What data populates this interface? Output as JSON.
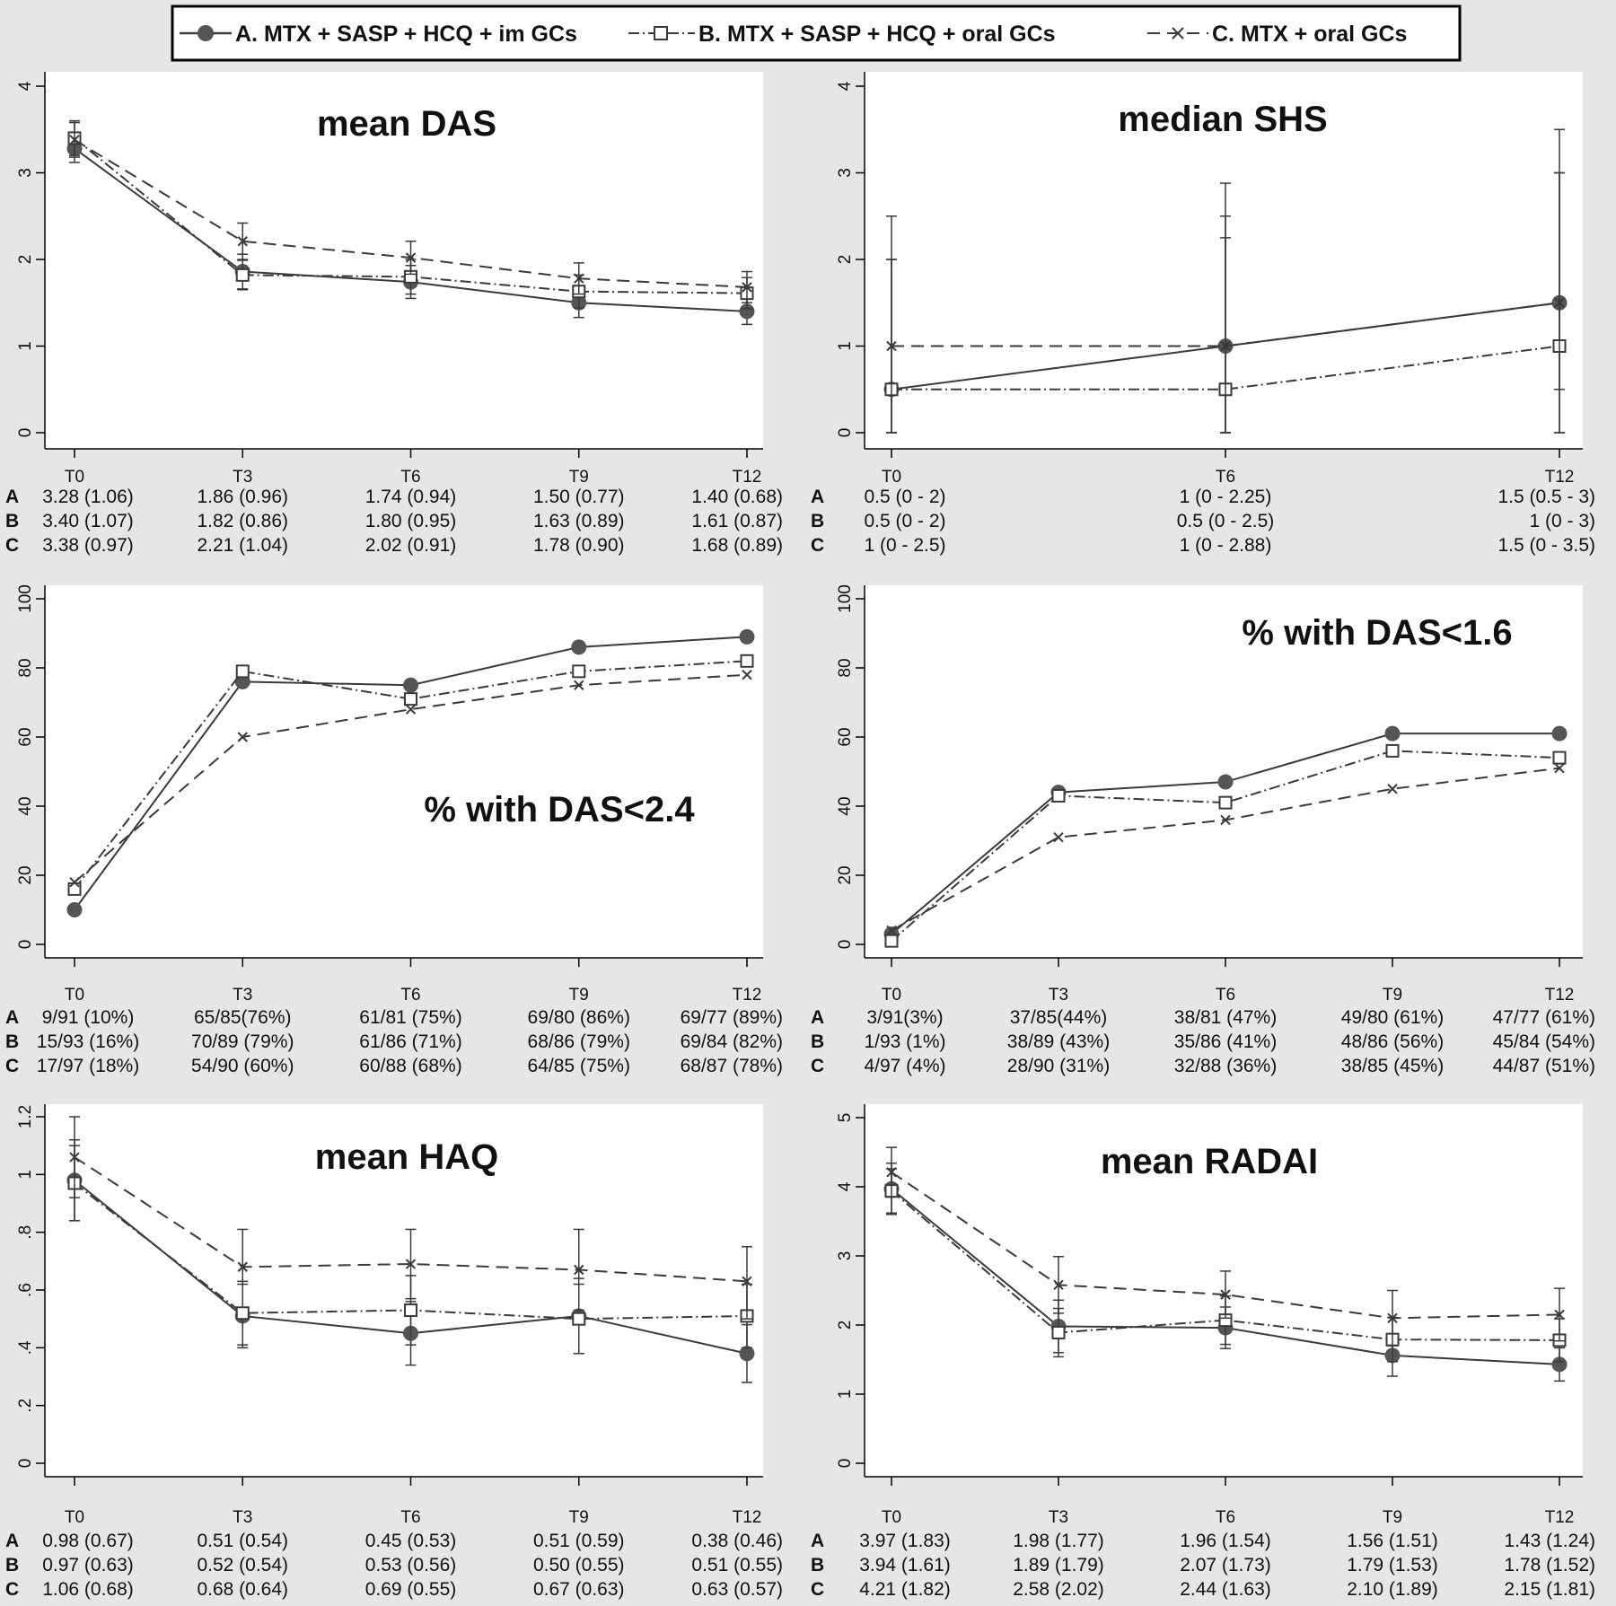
{
  "legend": [
    {
      "key": "A",
      "label": "A. MTX + SASP + HCQ + im GCs",
      "style": "solid",
      "marker": "circle"
    },
    {
      "key": "B",
      "label": "B. MTX + SASP + HCQ + oral GCs",
      "style": "dashdot",
      "marker": "square"
    },
    {
      "key": "C",
      "label": "C. MTX + oral GCs",
      "style": "dashed",
      "marker": "x"
    }
  ],
  "row_labels": [
    "A",
    "B",
    "C"
  ],
  "chart_data": [
    {
      "type": "line",
      "title": "mean DAS",
      "x": [
        "T0",
        "T3",
        "T6",
        "T9",
        "T12"
      ],
      "ylim": [
        0,
        4
      ],
      "yticks": [
        "0",
        "1",
        "2",
        "3",
        "4"
      ],
      "series": [
        {
          "name": "A",
          "values": [
            3.28,
            1.86,
            1.74,
            1.5,
            1.4
          ],
          "err_low": [
            3.12,
            1.66,
            1.55,
            1.33,
            1.25
          ],
          "err_high": [
            3.44,
            2.06,
            1.93,
            1.67,
            1.55
          ]
        },
        {
          "name": "B",
          "values": [
            3.4,
            1.82,
            1.8,
            1.63,
            1.61
          ],
          "err_low": [
            3.2,
            1.65,
            1.6,
            1.44,
            1.43
          ],
          "err_high": [
            3.6,
            1.99,
            2.0,
            1.82,
            1.79
          ]
        },
        {
          "name": "C",
          "values": [
            3.38,
            2.21,
            2.02,
            1.78,
            1.68
          ],
          "err_low": [
            3.18,
            2.0,
            1.83,
            1.6,
            1.5
          ],
          "err_high": [
            3.58,
            2.42,
            2.21,
            1.96,
            1.86
          ]
        }
      ],
      "table": [
        [
          "3.28 (1.06)",
          "1.86 (0.96)",
          "1.74 (0.94)",
          "1.50 (0.77)",
          "1.40 (0.68)"
        ],
        [
          "3.40 (1.07)",
          "1.82 (0.86)",
          "1.80 (0.95)",
          "1.63 (0.89)",
          "1.61 (0.87)"
        ],
        [
          "3.38 (0.97)",
          "2.21 (1.04)",
          "2.02 (0.91)",
          "1.78 (0.90)",
          "1.68 (0.89)"
        ]
      ]
    },
    {
      "type": "line",
      "title": "median SHS",
      "x": [
        "T0",
        "T6",
        "T12"
      ],
      "ylim": [
        0,
        4
      ],
      "yticks": [
        "0",
        "1",
        "2",
        "3",
        "4"
      ],
      "series": [
        {
          "name": "A",
          "values": [
            0.5,
            1,
            1.5
          ],
          "err_low": [
            0,
            0,
            0.5
          ],
          "err_high": [
            2,
            2.25,
            3
          ]
        },
        {
          "name": "B",
          "values": [
            0.5,
            0.5,
            1
          ],
          "err_low": [
            0,
            0,
            0
          ],
          "err_high": [
            2,
            2.5,
            3
          ]
        },
        {
          "name": "C",
          "values": [
            1,
            1,
            1.5
          ],
          "err_low": [
            0,
            0,
            0
          ],
          "err_high": [
            2.5,
            2.88,
            3.5
          ]
        }
      ],
      "table": [
        [
          "0.5 (0 - 2)",
          "1 (0 - 2.25)",
          "1.5 (0.5 - 3)"
        ],
        [
          "0.5 (0 - 2)",
          "0.5 (0 - 2.5)",
          "1 (0 - 3)"
        ],
        [
          "1 (0 - 2.5)",
          "1 (0 - 2.88)",
          "1.5 (0 - 3.5)"
        ]
      ]
    },
    {
      "type": "line",
      "title": "% with DAS<2.4",
      "x": [
        "T0",
        "T3",
        "T6",
        "T9",
        "T12"
      ],
      "ylim": [
        0,
        100
      ],
      "yticks": [
        "0",
        "20",
        "40",
        "60",
        "80",
        "100"
      ],
      "series": [
        {
          "name": "A",
          "values": [
            10,
            76,
            75,
            86,
            89
          ]
        },
        {
          "name": "B",
          "values": [
            16,
            79,
            71,
            79,
            82
          ]
        },
        {
          "name": "C",
          "values": [
            18,
            60,
            68,
            75,
            78
          ]
        }
      ],
      "table": [
        [
          "9/91 (10%)",
          "65/85(76%)",
          "61/81 (75%)",
          "69/80 (86%)",
          "69/77 (89%)"
        ],
        [
          "15/93 (16%)",
          "70/89 (79%)",
          "61/86 (71%)",
          "68/86 (79%)",
          "69/84 (82%)"
        ],
        [
          "17/97 (18%)",
          "54/90 (60%)",
          "60/88 (68%)",
          "64/85 (75%)",
          "68/87 (78%)"
        ]
      ]
    },
    {
      "type": "line",
      "title": "% with DAS<1.6",
      "x": [
        "T0",
        "T3",
        "T6",
        "T9",
        "T12"
      ],
      "ylim": [
        0,
        100
      ],
      "yticks": [
        "0",
        "20",
        "40",
        "60",
        "80",
        "100"
      ],
      "series": [
        {
          "name": "A",
          "values": [
            3,
            44,
            47,
            61,
            61
          ]
        },
        {
          "name": "B",
          "values": [
            1,
            43,
            41,
            56,
            54
          ]
        },
        {
          "name": "C",
          "values": [
            4,
            31,
            36,
            45,
            51
          ]
        }
      ],
      "table": [
        [
          "3/91(3%)",
          "37/85(44%)",
          "38/81 (47%)",
          "49/80 (61%)",
          "47/77 (61%)"
        ],
        [
          "1/93 (1%)",
          "38/89 (43%)",
          "35/86 (41%)",
          "48/86 (56%)",
          "45/84 (54%)"
        ],
        [
          "4/97 (4%)",
          "28/90 (31%)",
          "32/88 (36%)",
          "38/85 (45%)",
          "44/87 (51%)"
        ]
      ]
    },
    {
      "type": "line",
      "title": "mean HAQ",
      "x": [
        "T0",
        "T3",
        "T6",
        "T9",
        "T12"
      ],
      "ylim": [
        0,
        1.2
      ],
      "yticks": [
        "0",
        ".2",
        ".4",
        ".6",
        ".8",
        "1",
        "1.2"
      ],
      "series": [
        {
          "name": "A",
          "values": [
            0.98,
            0.51,
            0.45,
            0.51,
            0.38
          ],
          "err_low": [
            0.84,
            0.4,
            0.34,
            0.38,
            0.28
          ],
          "err_high": [
            1.12,
            0.62,
            0.56,
            0.64,
            0.48
          ]
        },
        {
          "name": "B",
          "values": [
            0.97,
            0.52,
            0.53,
            0.5,
            0.51
          ],
          "err_low": [
            0.84,
            0.41,
            0.41,
            0.38,
            0.4
          ],
          "err_high": [
            1.1,
            0.63,
            0.65,
            0.62,
            0.62
          ]
        },
        {
          "name": "C",
          "values": [
            1.06,
            0.68,
            0.69,
            0.67,
            0.63
          ],
          "err_low": [
            0.92,
            0.54,
            0.57,
            0.53,
            0.5
          ],
          "err_high": [
            1.2,
            0.81,
            0.81,
            0.81,
            0.75
          ]
        }
      ],
      "table": [
        [
          "0.98 (0.67)",
          "0.51 (0.54)",
          "0.45 (0.53)",
          "0.51 (0.59)",
          "0.38 (0.46)"
        ],
        [
          "0.97 (0.63)",
          "0.52 (0.54)",
          "0.53 (0.56)",
          "0.50 (0.55)",
          "0.51 (0.55)"
        ],
        [
          "1.06 (0.68)",
          "0.68 (0.64)",
          "0.69 (0.55)",
          "0.67 (0.63)",
          "0.63 (0.57)"
        ]
      ]
    },
    {
      "type": "line",
      "title": "mean RADAI",
      "x": [
        "T0",
        "T3",
        "T6",
        "T9",
        "T12"
      ],
      "ylim": [
        0,
        5
      ],
      "yticks": [
        "0",
        "1",
        "2",
        "3",
        "4",
        "5"
      ],
      "series": [
        {
          "name": "A",
          "values": [
            3.97,
            1.98,
            1.96,
            1.56,
            1.43
          ],
          "err_low": [
            3.6,
            1.6,
            1.66,
            1.26,
            1.19
          ],
          "err_high": [
            4.34,
            2.36,
            2.26,
            1.86,
            1.67
          ]
        },
        {
          "name": "B",
          "values": [
            3.94,
            1.89,
            2.07,
            1.79,
            1.78
          ],
          "err_low": [
            3.62,
            1.54,
            1.72,
            1.47,
            1.47
          ],
          "err_high": [
            4.26,
            2.24,
            2.42,
            2.11,
            2.09
          ]
        },
        {
          "name": "C",
          "values": [
            4.21,
            2.58,
            2.44,
            2.1,
            2.15
          ],
          "err_low": [
            3.85,
            2.17,
            2.1,
            1.7,
            1.77
          ],
          "err_high": [
            4.57,
            2.99,
            2.78,
            2.5,
            2.53
          ]
        }
      ],
      "table": [
        [
          "3.97 (1.83)",
          "1.98 (1.77)",
          "1.96 (1.54)",
          "1.56 (1.51)",
          "1.43 (1.24)"
        ],
        [
          "3.94 (1.61)",
          "1.89 (1.79)",
          "2.07 (1.73)",
          "1.79 (1.53)",
          "1.78 (1.52)"
        ],
        [
          "4.21 (1.82)",
          "2.58 (2.02)",
          "2.44 (1.63)",
          "2.10 (1.89)",
          "2.15 (1.81)"
        ]
      ]
    }
  ]
}
